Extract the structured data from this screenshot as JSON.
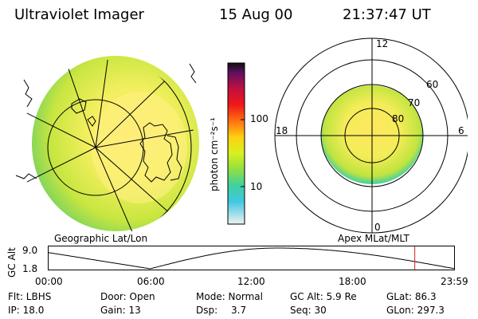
{
  "header": {
    "instrument": "Ultraviolet Imager",
    "date": "15 Aug 00",
    "time": "21:37:47 UT"
  },
  "colorbar": {
    "label": "photon cm⁻²s⁻¹",
    "ticks": [
      "100",
      "10"
    ]
  },
  "polar_plot": {
    "mlt_labels": {
      "top": "12",
      "right": "6",
      "bottom": "0",
      "left": "18"
    },
    "lat_labels": [
      "60",
      "70",
      "80"
    ]
  },
  "altitude_plot": {
    "left_caption": "Geographic Lat/Lon",
    "right_caption": "Apex MLat/MLT",
    "axis_label": "GC Alt",
    "y_ticks": [
      "9.0",
      "1.8"
    ],
    "x_ticks": [
      "00:00",
      "06:00",
      "12:00",
      "18:00",
      "23:59"
    ],
    "current_marker_hour": 21.63,
    "marker_color": "#d02020"
  },
  "info": {
    "row1": {
      "flt": "Flt: LBHS",
      "door": "Door: Open",
      "mode": "Mode: Normal",
      "gcalt": "GC Alt: 5.9 Re",
      "glat": "GLat: 86.3"
    },
    "row2": {
      "ip": "IP: 18.0",
      "gain": "Gain: 13",
      "dsp_label": "Dsp:",
      "dsp_value": "3.7",
      "seq": "Seq: 30",
      "glon": "GLon: 297.3"
    }
  }
}
